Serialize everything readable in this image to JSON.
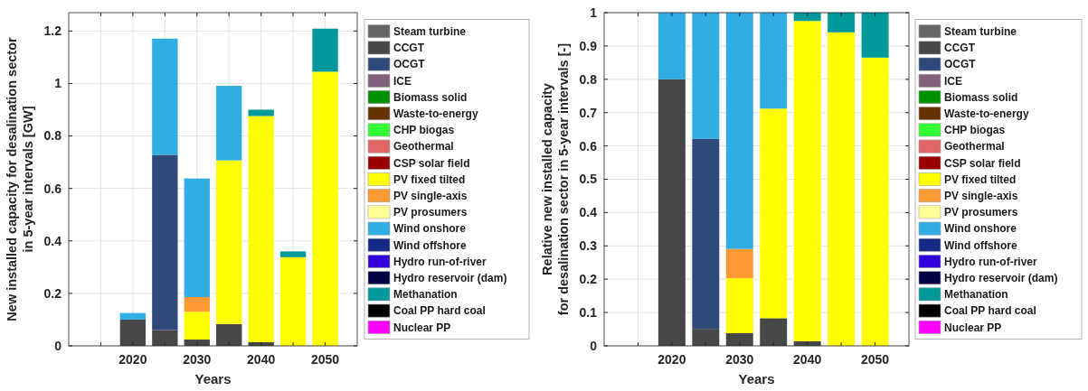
{
  "chart_data": [
    {
      "type": "bar",
      "stacked": true,
      "xlabel": "Years",
      "ylabel": "New installed capacity for desalination sector\nin 5-year intervals [GW]",
      "x": [
        2020,
        2025,
        2030,
        2035,
        2040,
        2045,
        2050
      ],
      "xlim": [
        2010,
        2055
      ],
      "xticks": [
        {
          "value": 2015,
          "label": null
        },
        2020,
        {
          "value": 2025,
          "label": null
        },
        2030,
        {
          "value": 2035,
          "label": null
        },
        2040,
        {
          "value": 2045,
          "label": null
        },
        2050
      ],
      "ylim": [
        0,
        1.27
      ],
      "yticks": [
        0,
        0.2,
        0.4,
        0.6,
        0.8,
        1,
        1.2
      ],
      "grid": true,
      "legend": "right",
      "series": [
        {
          "name": "Steam turbine",
          "color": "#666666",
          "values": [
            null,
            null,
            null,
            null,
            null,
            null,
            null
          ]
        },
        {
          "name": "CCGT",
          "color": "#474747",
          "values": [
            0.1,
            0.06,
            0.024,
            0.083,
            0.014,
            null,
            null
          ]
        },
        {
          "name": "OCGT",
          "color": "#2f4a7a",
          "values": [
            null,
            0.668,
            null,
            null,
            null,
            null,
            null
          ]
        },
        {
          "name": "ICE",
          "color": "#80607a",
          "values": [
            null,
            null,
            null,
            null,
            null,
            null,
            null
          ]
        },
        {
          "name": "Biomass solid",
          "color": "#009000",
          "values": [
            null,
            null,
            null,
            null,
            null,
            null,
            null
          ]
        },
        {
          "name": "Waste-to-energy",
          "color": "#663300",
          "values": [
            null,
            null,
            null,
            null,
            null,
            null,
            null
          ]
        },
        {
          "name": "CHP biogas",
          "color": "#33ff33",
          "values": [
            null,
            null,
            null,
            null,
            null,
            null,
            null
          ]
        },
        {
          "name": "Geothermal",
          "color": "#e06666",
          "values": [
            null,
            null,
            null,
            null,
            null,
            null,
            null
          ]
        },
        {
          "name": "CSP solar field",
          "color": "#990000",
          "values": [
            null,
            null,
            null,
            null,
            null,
            null,
            null
          ]
        },
        {
          "name": "PV fixed tilted",
          "color": "#ffff00",
          "values": [
            null,
            null,
            0.106,
            0.624,
            0.862,
            0.338,
            1.045
          ]
        },
        {
          "name": "PV single-axis",
          "color": "#ff9933",
          "values": [
            null,
            null,
            0.056,
            null,
            null,
            null,
            null
          ]
        },
        {
          "name": "PV prosumers",
          "color": "#ffff99",
          "values": [
            null,
            null,
            null,
            null,
            null,
            null,
            null
          ]
        },
        {
          "name": "Wind onshore",
          "color": "#30aee3",
          "values": [
            0.025,
            0.443,
            0.452,
            0.284,
            null,
            null,
            null
          ]
        },
        {
          "name": "Wind offshore",
          "color": "#152a85",
          "values": [
            null,
            null,
            null,
            null,
            null,
            null,
            null
          ]
        },
        {
          "name": "Hydro run-of-river",
          "color": "#3300dd",
          "values": [
            null,
            null,
            null,
            null,
            null,
            null,
            null
          ]
        },
        {
          "name": "Hydro reservoir (dam)",
          "color": "#000044",
          "values": [
            null,
            null,
            null,
            null,
            null,
            null,
            null
          ]
        },
        {
          "name": "Methanation",
          "color": "#009999",
          "values": [
            null,
            null,
            null,
            null,
            0.024,
            0.022,
            0.164
          ]
        },
        {
          "name": "Coal PP hard coal",
          "color": "#000000",
          "values": [
            null,
            null,
            null,
            null,
            null,
            null,
            null
          ]
        },
        {
          "name": "Nuclear PP",
          "color": "#ff00ff",
          "values": [
            null,
            null,
            null,
            null,
            null,
            null,
            null
          ]
        }
      ]
    },
    {
      "type": "bar",
      "stacked": true,
      "xlabel": "Years",
      "ylabel": "Relative new installed capacity\nfor desalination sector in 5-year intervals [-]",
      "x": [
        2020,
        2025,
        2030,
        2035,
        2040,
        2045,
        2050
      ],
      "xlim": [
        2010,
        2055
      ],
      "xticks": [
        {
          "value": 2015,
          "label": null
        },
        2020,
        {
          "value": 2025,
          "label": null
        },
        2030,
        {
          "value": 2035,
          "label": null
        },
        2040,
        {
          "value": 2045,
          "label": null
        },
        2050
      ],
      "ylim": [
        0,
        1
      ],
      "yticks": [
        0,
        0.1,
        0.2,
        0.3,
        0.4,
        0.5,
        0.6,
        0.7,
        0.8,
        0.9,
        1
      ],
      "grid": true,
      "legend": "right",
      "series": [
        {
          "name": "Steam turbine",
          "color": "#666666",
          "values": [
            null,
            null,
            null,
            null,
            null,
            null,
            null
          ]
        },
        {
          "name": "CCGT",
          "color": "#474747",
          "values": [
            0.8,
            0.051,
            0.038,
            0.083,
            0.014,
            null,
            null
          ]
        },
        {
          "name": "OCGT",
          "color": "#2f4a7a",
          "values": [
            null,
            0.571,
            null,
            null,
            null,
            null,
            null
          ]
        },
        {
          "name": "ICE",
          "color": "#80607a",
          "values": [
            null,
            null,
            null,
            null,
            null,
            null,
            null
          ]
        },
        {
          "name": "Biomass solid",
          "color": "#009000",
          "values": [
            null,
            null,
            null,
            null,
            null,
            null,
            null
          ]
        },
        {
          "name": "Waste-to-energy",
          "color": "#663300",
          "values": [
            null,
            null,
            null,
            null,
            null,
            null,
            null
          ]
        },
        {
          "name": "CHP biogas",
          "color": "#33ff33",
          "values": [
            null,
            null,
            null,
            null,
            null,
            null,
            null
          ]
        },
        {
          "name": "Geothermal",
          "color": "#e06666",
          "values": [
            null,
            null,
            null,
            null,
            null,
            null,
            null
          ]
        },
        {
          "name": "CSP solar field",
          "color": "#990000",
          "values": [
            null,
            null,
            null,
            null,
            null,
            null,
            null
          ]
        },
        {
          "name": "PV fixed tilted",
          "color": "#ffff00",
          "values": [
            null,
            null,
            0.165,
            0.629,
            0.961,
            0.941,
            0.865
          ]
        },
        {
          "name": "PV single-axis",
          "color": "#ff9933",
          "values": [
            null,
            null,
            0.088,
            null,
            null,
            null,
            null
          ]
        },
        {
          "name": "PV prosumers",
          "color": "#ffff99",
          "values": [
            null,
            null,
            null,
            null,
            null,
            null,
            null
          ]
        },
        {
          "name": "Wind onshore",
          "color": "#30aee3",
          "values": [
            0.2,
            0.378,
            0.709,
            0.288,
            null,
            null,
            null
          ]
        },
        {
          "name": "Wind offshore",
          "color": "#152a85",
          "values": [
            null,
            null,
            null,
            null,
            null,
            null,
            null
          ]
        },
        {
          "name": "Hydro run-of-river",
          "color": "#3300dd",
          "values": [
            null,
            null,
            null,
            null,
            null,
            null,
            null
          ]
        },
        {
          "name": "Hydro reservoir (dam)",
          "color": "#000044",
          "values": [
            null,
            null,
            null,
            null,
            null,
            null,
            null
          ]
        },
        {
          "name": "Methanation",
          "color": "#009999",
          "values": [
            null,
            null,
            null,
            null,
            0.025,
            0.059,
            0.135
          ]
        },
        {
          "name": "Coal PP hard coal",
          "color": "#000000",
          "values": [
            null,
            null,
            null,
            null,
            null,
            null,
            null
          ]
        },
        {
          "name": "Nuclear PP",
          "color": "#ff00ff",
          "values": [
            null,
            null,
            null,
            null,
            null,
            null,
            null
          ]
        }
      ]
    }
  ]
}
